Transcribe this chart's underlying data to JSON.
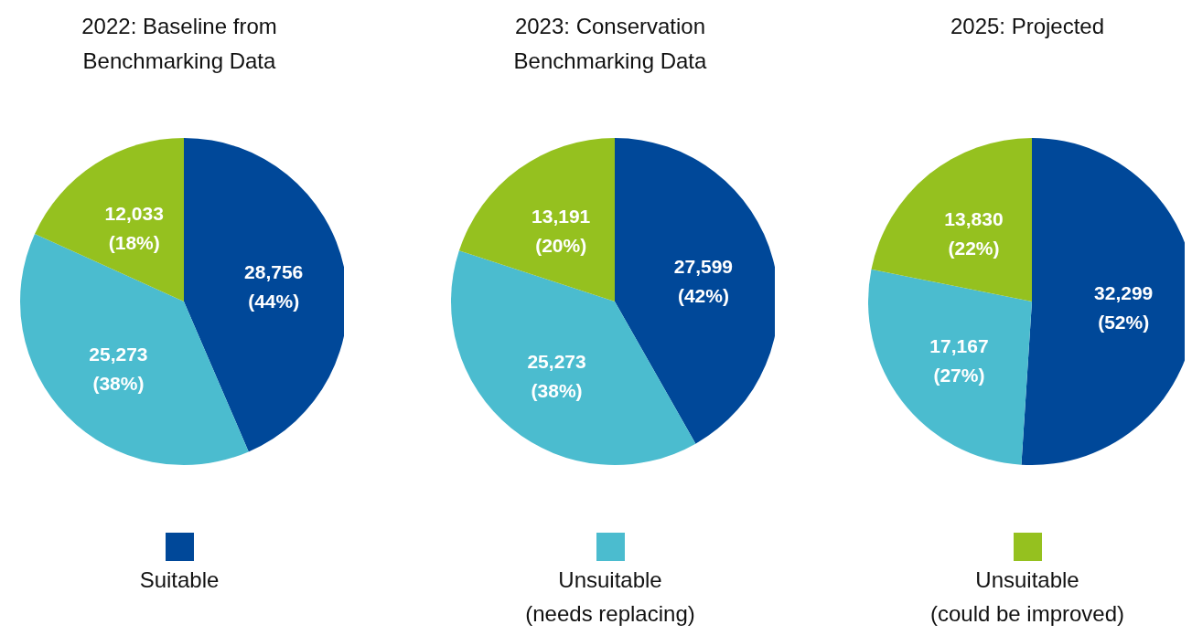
{
  "chart_data": [
    {
      "type": "pie",
      "title": "2022: Baseline from Benchmarking Data",
      "categories": [
        "Suitable",
        "Unsuitable (needs replacing)",
        "Unsuitable (could be improved)"
      ],
      "values": [
        28756,
        25273,
        12033
      ],
      "colors": [
        "#004899",
        "#4bbccf",
        "#95c11f"
      ],
      "value_labels": [
        "28,756 (44%)",
        "25,273 (38%)",
        "12,033 (18%)"
      ],
      "legend": "bottom"
    },
    {
      "type": "pie",
      "title": "2023: Conservation Benchmarking Data",
      "categories": [
        null,
        null,
        null
      ],
      "values": [
        27599,
        25273,
        13191
      ],
      "colors": [
        "#004899",
        "#4bbccf",
        "#95c11f"
      ],
      "value_labels": [
        "27,599 (42%)",
        "25,273 (38%)",
        "13,191 (20%)"
      ]
    },
    {
      "type": "pie",
      "title": "2025: Projected",
      "categories": [
        null,
        null,
        null
      ],
      "values": [
        32299,
        17167,
        13830
      ],
      "colors": [
        "#004899",
        "#4bbccf",
        "#95c11f"
      ],
      "value_labels": [
        "32,299 (52%)",
        "17,167 (27%)",
        "13,830 (22%)"
      ]
    }
  ]
}
